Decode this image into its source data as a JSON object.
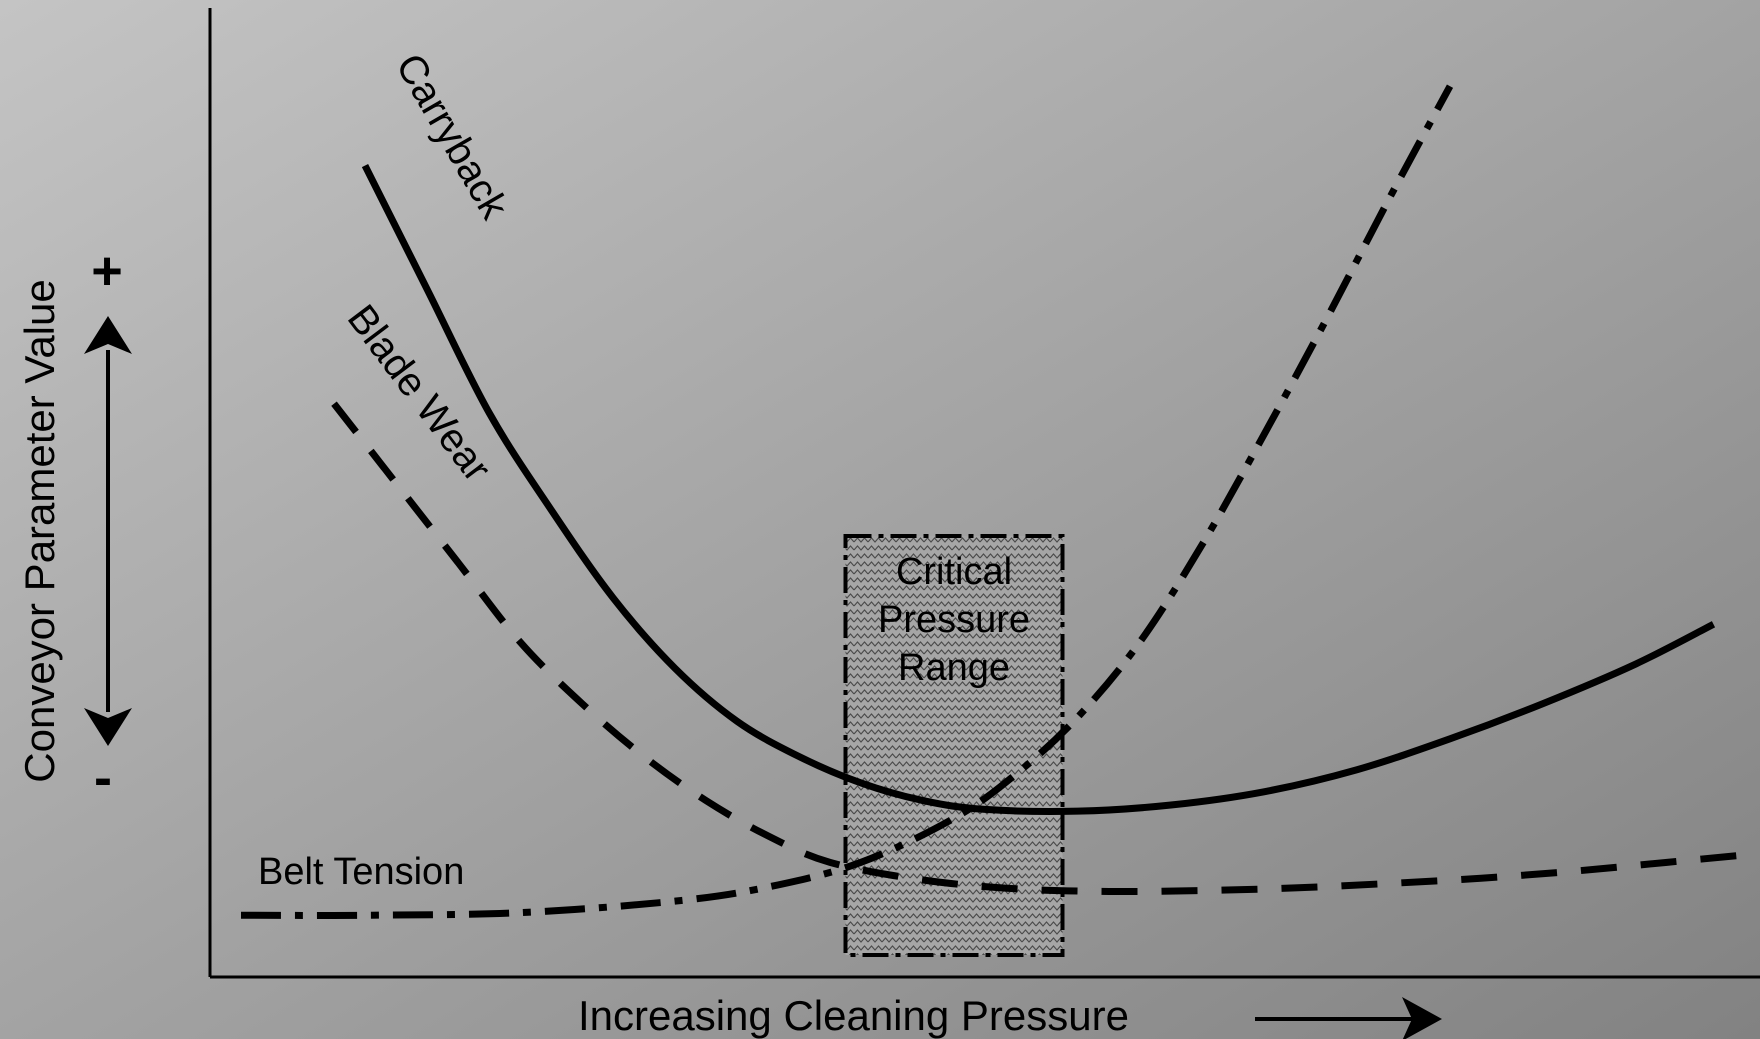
{
  "chart_data": {
    "type": "line",
    "title": "",
    "xlabel": "Increasing Cleaning Pressure",
    "ylabel": "Conveyor Parameter Value",
    "y_axis_markers": {
      "plus": "+",
      "minus": "-"
    },
    "xlim": [
      0,
      100
    ],
    "ylim": [
      0,
      100
    ],
    "ticks": "none",
    "grid": false,
    "legend": "none (series labelled inline)",
    "background": {
      "top_left": "#c4c4c4",
      "bottom_right": "#828282"
    },
    "series": [
      {
        "name": "Carryback",
        "style": "solid",
        "x": [
          10,
          14,
          18,
          22,
          26,
          30,
          34,
          38,
          42,
          46,
          50,
          56,
          62,
          68,
          74,
          80,
          86,
          92,
          97
        ],
        "y": [
          92,
          78,
          64,
          53,
          43,
          35,
          29,
          25,
          22,
          20,
          19,
          18.8,
          19.5,
          21,
          23.5,
          27,
          31,
          35.5,
          40
        ]
      },
      {
        "name": "Blade Wear",
        "style": "dashed",
        "x": [
          8,
          12,
          16,
          20,
          24,
          28,
          32,
          36,
          40,
          46,
          52,
          58,
          64,
          70,
          76,
          82,
          88,
          94,
          100
        ],
        "y": [
          65,
          56,
          47,
          38,
          31,
          25,
          20,
          16,
          13,
          11,
          10,
          9.7,
          9.8,
          10.1,
          10.6,
          11.2,
          12,
          13,
          14
        ]
      },
      {
        "name": "Belt Tension",
        "style": "dash-dot",
        "x": [
          2,
          10,
          20,
          30,
          36,
          42,
          48,
          52,
          56,
          60,
          64,
          68,
          72,
          76,
          80
        ],
        "y": [
          7,
          7,
          7.3,
          8.6,
          10.2,
          13,
          18,
          23,
          29.5,
          38,
          49,
          61.5,
          74.5,
          88,
          101
        ]
      }
    ],
    "annotations": [
      {
        "label_lines": [
          "Critical",
          "Pressure",
          "Range"
        ],
        "type": "shaded-region",
        "x_range": [
          41,
          55
        ],
        "y_range": [
          0,
          50
        ]
      }
    ]
  }
}
